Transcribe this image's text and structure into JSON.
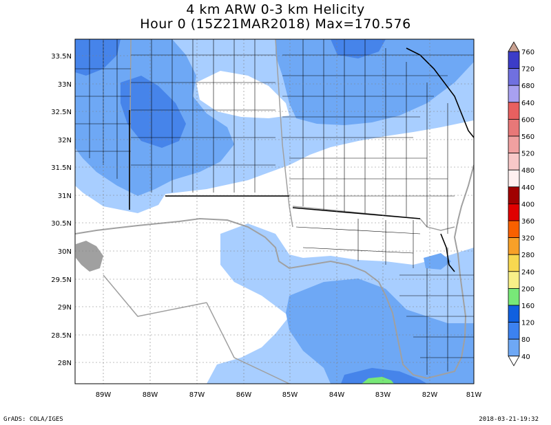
{
  "title_line1": "4 km ARW 0-3 km Helicity",
  "title_line2": "Hour 0 (15Z21MAR2018) Max=170.576",
  "footer_left": "GrADS: COLA/IGES",
  "footer_right": "2018-03-21-19:32",
  "map": {
    "lon_range": [
      -89.6,
      -81.0
    ],
    "lat_range": [
      25.6,
      33.8
    ],
    "lon_ticks": [
      "89W",
      "88W",
      "87W",
      "86W",
      "85W",
      "84W",
      "83W",
      "82W",
      "81W"
    ],
    "lat_ticks": [
      "33.5N",
      "33N",
      "32.5N",
      "32N",
      "31.5N",
      "31N",
      "30.5N",
      "30N",
      "29.5N",
      "29N",
      "28.5N",
      "28N"
    ],
    "colors": {
      "c40": "#a8ceff",
      "c80": "#6ea8f5",
      "c120": "#4684ea",
      "ocean_border": "#a0a0a0",
      "county": "#000000"
    }
  },
  "colorbar": {
    "levels": [
      "760",
      "720",
      "680",
      "640",
      "600",
      "560",
      "520",
      "480",
      "440",
      "400",
      "360",
      "320",
      "280",
      "240",
      "200",
      "160",
      "120",
      "80",
      "40"
    ],
    "colors": [
      "#c8a090",
      "#3c3cc8",
      "#7070e0",
      "#a8a0f0",
      "#e86060",
      "#e87878",
      "#f0a0a0",
      "#f8c8c8",
      "#fff0f0",
      "#a00000",
      "#e00000",
      "#f86000",
      "#f8a028",
      "#f8d850",
      "#f8f088",
      "#78e878",
      "#1060e0",
      "#3c82f0",
      "#6ea8f5",
      "#a8ceff"
    ]
  }
}
